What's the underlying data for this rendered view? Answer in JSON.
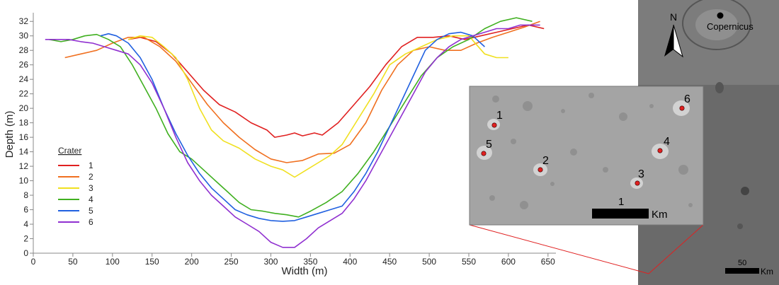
{
  "chart_data": {
    "type": "line",
    "title": "",
    "xlabel": "Width (m)",
    "ylabel": "Depth (m)",
    "xlim": [
      0,
      660
    ],
    "ylim": [
      0,
      33
    ],
    "x_ticks": [
      0,
      50,
      100,
      150,
      200,
      250,
      300,
      350,
      400,
      450,
      500,
      550,
      600,
      650
    ],
    "y_ticks": [
      0,
      2,
      4,
      6,
      8,
      10,
      12,
      14,
      16,
      18,
      20,
      22,
      24,
      26,
      28,
      30,
      32
    ],
    "grid": false,
    "legend": {
      "title": "Crater",
      "placement": "left-middle"
    },
    "series": [
      {
        "name": "1",
        "color": "#e02020",
        "x": [
          120,
          135,
          155,
          175,
          195,
          215,
          235,
          255,
          275,
          295,
          305,
          320,
          330,
          340,
          355,
          365,
          385,
          405,
          425,
          445,
          465,
          485,
          505,
          525,
          545,
          565,
          585,
          605,
          625,
          645
        ],
        "y": [
          29.5,
          29.8,
          29.2,
          27.5,
          25.0,
          22.5,
          20.5,
          19.5,
          18.0,
          17.0,
          16.0,
          16.3,
          16.6,
          16.2,
          16.6,
          16.3,
          18.0,
          20.5,
          23.0,
          26.0,
          28.5,
          29.8,
          29.8,
          30.0,
          29.5,
          30.0,
          30.5,
          31.0,
          31.5,
          31.0
        ]
      },
      {
        "name": "2",
        "color": "#f07020",
        "x": [
          40,
          60,
          80,
          100,
          120,
          140,
          160,
          180,
          200,
          220,
          240,
          260,
          280,
          300,
          320,
          340,
          360,
          380,
          400,
          420,
          440,
          460,
          480,
          500,
          520,
          540,
          560,
          580,
          600,
          620,
          640
        ],
        "y": [
          27.0,
          27.5,
          28.0,
          29.0,
          29.8,
          29.8,
          28.5,
          26.5,
          23.5,
          20.5,
          18.0,
          16.0,
          14.3,
          13.0,
          12.5,
          12.8,
          13.7,
          13.8,
          15.0,
          18.0,
          22.5,
          26.0,
          28.0,
          28.5,
          28.0,
          28.0,
          29.0,
          29.8,
          30.5,
          31.2,
          32.0
        ]
      },
      {
        "name": "3",
        "color": "#f0e020",
        "x": [
          120,
          135,
          150,
          165,
          180,
          195,
          210,
          225,
          240,
          260,
          280,
          300,
          315,
          330,
          345,
          360,
          375,
          390,
          410,
          430,
          450,
          470,
          490,
          510,
          530,
          550,
          570,
          585,
          600
        ],
        "y": [
          29.5,
          30.0,
          29.8,
          28.5,
          27.0,
          24.0,
          20.0,
          17.0,
          15.5,
          14.5,
          13.0,
          12.0,
          11.5,
          10.5,
          11.5,
          12.5,
          13.5,
          15.0,
          18.5,
          22.0,
          26.0,
          27.5,
          28.5,
          29.5,
          30.0,
          30.0,
          27.5,
          27.0,
          27.0
        ]
      },
      {
        "name": "4",
        "color": "#40b020",
        "x": [
          20,
          35,
          50,
          65,
          80,
          95,
          110,
          125,
          140,
          155,
          170,
          185,
          200,
          215,
          230,
          245,
          260,
          275,
          290,
          305,
          320,
          335,
          350,
          370,
          390,
          410,
          430,
          450,
          470,
          490,
          510,
          530,
          550,
          570,
          590,
          610,
          630
        ],
        "y": [
          29.5,
          29.2,
          29.5,
          30.0,
          30.2,
          29.5,
          28.5,
          26.0,
          23.0,
          20.0,
          16.5,
          14.0,
          13.0,
          11.5,
          10.0,
          8.5,
          7.0,
          6.0,
          5.8,
          5.5,
          5.3,
          5.0,
          5.8,
          7.0,
          8.5,
          11.0,
          14.0,
          17.5,
          21.0,
          24.5,
          27.0,
          28.5,
          29.5,
          31.0,
          32.0,
          32.5,
          32.0
        ]
      },
      {
        "name": "5",
        "color": "#2060e0",
        "x": [
          85,
          95,
          105,
          120,
          135,
          150,
          165,
          180,
          195,
          210,
          225,
          240,
          255,
          270,
          285,
          300,
          315,
          330,
          345,
          360,
          375,
          390,
          405,
          420,
          435,
          450,
          465,
          480,
          495,
          510,
          525,
          540,
          555,
          570
        ],
        "y": [
          30.0,
          30.3,
          30.0,
          29.0,
          27.0,
          24.0,
          20.0,
          16.5,
          13.5,
          11.0,
          9.0,
          7.5,
          6.0,
          5.3,
          4.8,
          4.5,
          4.4,
          4.5,
          5.0,
          5.5,
          6.0,
          6.5,
          8.5,
          11.0,
          14.0,
          17.5,
          21.0,
          24.5,
          28.0,
          29.5,
          30.3,
          30.5,
          30.0,
          28.5
        ]
      },
      {
        "name": "6",
        "color": "#9030d0",
        "x": [
          15,
          30,
          45,
          60,
          75,
          90,
          105,
          120,
          135,
          150,
          165,
          180,
          195,
          210,
          225,
          240,
          255,
          270,
          285,
          300,
          315,
          330,
          345,
          360,
          375,
          390,
          405,
          420,
          435,
          450,
          465,
          480,
          495,
          510,
          525,
          540,
          555,
          570,
          585,
          600,
          615,
          630,
          640
        ],
        "y": [
          29.5,
          29.5,
          29.5,
          29.2,
          29.0,
          28.5,
          28.0,
          27.5,
          26.0,
          23.5,
          20.0,
          16.0,
          12.5,
          10.0,
          8.0,
          6.5,
          5.0,
          4.0,
          3.0,
          1.5,
          0.8,
          0.8,
          2.0,
          3.5,
          4.5,
          5.5,
          7.5,
          10.0,
          13.0,
          16.0,
          19.0,
          22.0,
          25.0,
          27.0,
          28.5,
          29.5,
          30.0,
          30.5,
          31.0,
          31.0,
          31.5,
          31.5,
          31.5
        ]
      }
    ]
  },
  "inset": {
    "scale_unit": "Km",
    "crater_labels": [
      "1",
      "2",
      "3",
      "4",
      "5",
      "6"
    ],
    "scale_number": "1",
    "marker_color": "#e02020"
  },
  "context_map": {
    "north_label": "N",
    "feature_label": "Copernicus",
    "scale_number": "50",
    "scale_unit": "Km"
  }
}
